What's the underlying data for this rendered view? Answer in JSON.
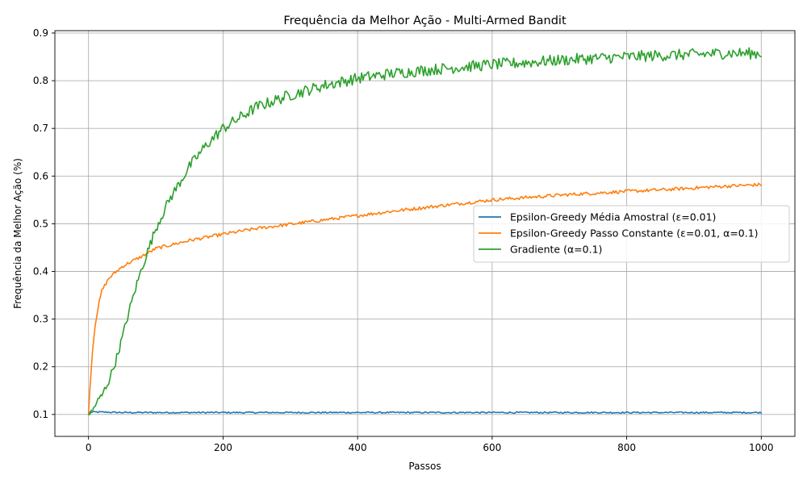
{
  "chart_data": {
    "type": "line",
    "title": "Frequência da Melhor Ação - Multi-Armed Bandit",
    "xlabel": "Passos",
    "ylabel": "Frequência da Melhor Ação (%)",
    "xlim": [
      -50,
      1050
    ],
    "ylim": [
      0.054,
      0.905
    ],
    "xticks": [
      0,
      200,
      400,
      600,
      800,
      1000
    ],
    "yticks": [
      0.1,
      0.2,
      0.3,
      0.4,
      0.5,
      0.6,
      0.7,
      0.8,
      0.9
    ],
    "xtick_labels": [
      "0",
      "200",
      "400",
      "600",
      "800",
      "1000"
    ],
    "ytick_labels": [
      "0.1",
      "0.2",
      "0.3",
      "0.4",
      "0.5",
      "0.6",
      "0.7",
      "0.8",
      "0.9"
    ],
    "grid": true,
    "legend_position": "center-right",
    "series": [
      {
        "name": "Epsilon-Greedy Média Amostral (ε=0.01)",
        "color": "#1f77b4",
        "x": [
          0,
          1,
          3,
          5,
          10,
          20,
          50,
          100,
          200,
          300,
          400,
          500,
          600,
          700,
          800,
          900,
          1000
        ],
        "values": [
          0.1,
          0.105,
          0.104,
          0.105,
          0.105,
          0.105,
          0.104,
          0.104,
          0.104,
          0.104,
          0.104,
          0.104,
          0.104,
          0.104,
          0.104,
          0.104,
          0.104
        ],
        "noise": 0.0015
      },
      {
        "name": "Epsilon-Greedy Passo Constante (ε=0.01, α=0.1)",
        "color": "#ff7f0e",
        "x": [
          0,
          2,
          5,
          10,
          15,
          20,
          30,
          40,
          50,
          60,
          80,
          100,
          150,
          200,
          250,
          300,
          350,
          400,
          450,
          500,
          550,
          600,
          650,
          700,
          750,
          800,
          850,
          900,
          950,
          1000
        ],
        "values": [
          0.1,
          0.15,
          0.22,
          0.29,
          0.33,
          0.36,
          0.385,
          0.398,
          0.41,
          0.418,
          0.432,
          0.448,
          0.465,
          0.478,
          0.49,
          0.499,
          0.508,
          0.517,
          0.526,
          0.534,
          0.542,
          0.55,
          0.555,
          0.56,
          0.564,
          0.568,
          0.571,
          0.575,
          0.579,
          0.582
        ],
        "noise": 0.0035
      },
      {
        "name": "Gradiente (α=0.1)",
        "color": "#2ca02c",
        "x": [
          0,
          5,
          10,
          20,
          30,
          40,
          50,
          60,
          70,
          80,
          90,
          100,
          120,
          150,
          175,
          200,
          250,
          300,
          350,
          400,
          450,
          500,
          550,
          600,
          650,
          700,
          750,
          800,
          850,
          900,
          950,
          1000
        ],
        "values": [
          0.1,
          0.105,
          0.12,
          0.14,
          0.17,
          0.21,
          0.26,
          0.315,
          0.365,
          0.41,
          0.45,
          0.49,
          0.55,
          0.62,
          0.665,
          0.7,
          0.745,
          0.77,
          0.79,
          0.805,
          0.815,
          0.822,
          0.828,
          0.834,
          0.838,
          0.843,
          0.847,
          0.85,
          0.853,
          0.855,
          0.858,
          0.857
        ],
        "noise": 0.008
      }
    ]
  }
}
